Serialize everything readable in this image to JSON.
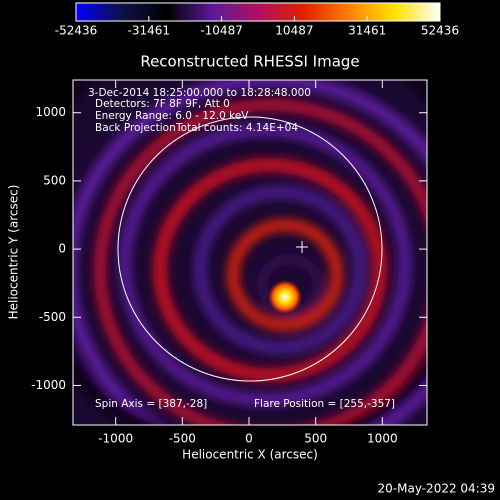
{
  "chart_data": {
    "type": "image",
    "title": "Reconstructed RHESSI Image",
    "x_label": "Heliocentric X (arcsec)",
    "y_label": "Heliocentric Y (arcsec)",
    "xlim": [
      -1320,
      1335
    ],
    "ylim": [
      -1290,
      1240
    ],
    "xticks": [
      -1000,
      -500,
      0,
      500,
      1000
    ],
    "yticks": [
      -1000,
      -500,
      0,
      500,
      1000
    ],
    "annotations": [
      "3-Dec-2014 18:25:00.000 to 18:28:48.000",
      "Detectors: 7F 8F 9F, Att 0",
      "Energy Range: 6.0 - 12.0 keV",
      "Back Projection",
      "Total counts: 4.14E+04"
    ],
    "spin_axis": "Spin Axis = [387,-28]",
    "flare_position": "Flare Position = [255,-357]",
    "timestamp": "20-May-2022 04:39",
    "colorbar": {
      "lim": [
        -52436,
        52436
      ],
      "ticks": [
        -52436,
        -31461,
        -10487,
        10487,
        31461,
        52436
      ],
      "colormap": [
        "#0000ff",
        "#10104a",
        "#000000",
        "#5a1a9a",
        "#b01060",
        "#e02000",
        "#ff8000",
        "#ffe000",
        "#ffffff"
      ]
    }
  }
}
